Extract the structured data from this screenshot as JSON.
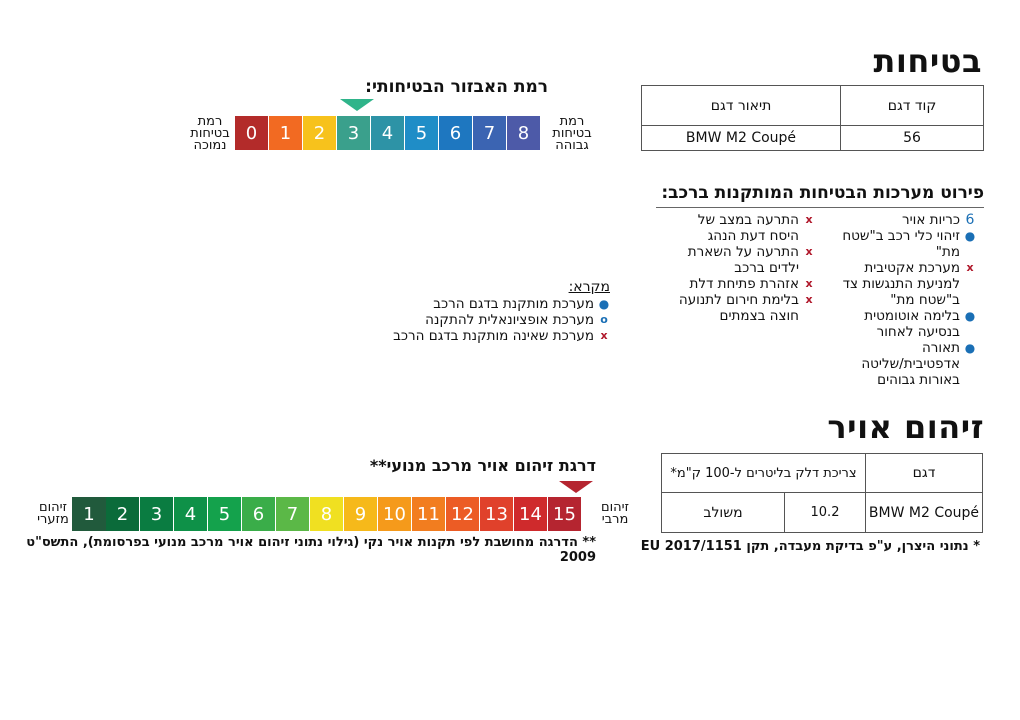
{
  "safety": {
    "title": "בטיחות",
    "table": {
      "headers": [
        "קוד דגם",
        "תיאור דגם"
      ],
      "row": [
        "56",
        "BMW M2 Coupé"
      ]
    },
    "level": {
      "title": "רמת האבזור הבטיחותי:",
      "high_label": [
        "רמת",
        "בטיחות",
        "גבוהה"
      ],
      "low_label": [
        "רמת",
        "בטיחות",
        "נמוכה"
      ],
      "values": [
        "8",
        "7",
        "6",
        "5",
        "4",
        "3",
        "2",
        "1",
        "0"
      ],
      "colors": [
        "#4d5aa8",
        "#3b64b2",
        "#1e77c0",
        "#1f8dc7",
        "#2d93a6",
        "#3aa08c",
        "#f7c21c",
        "#f26a22",
        "#b32b2a"
      ],
      "selected": "3",
      "indicator_color": "#2fb48a"
    },
    "systems": {
      "title": "פירוט מערכות הבטיחות המותקנות ברכב:",
      "col_right": [
        {
          "mark": "6",
          "type": "num",
          "text": "כריות אויר"
        },
        {
          "mark": "●",
          "type": "dot",
          "text": "זיהוי כלי רכב ב\"שטח מת\""
        },
        {
          "mark": "x",
          "type": "x",
          "text": "מערכת אקטיבית למניעת התנגשות צד ב\"שטח מת\""
        },
        {
          "mark": "●",
          "type": "dot",
          "text": "בלימה אוטומטית בנסיעה לאחור"
        },
        {
          "mark": "●",
          "type": "dot",
          "text": "תאורה אדפטיבית/שליטה באורות גבוהים"
        }
      ],
      "col_left": [
        {
          "mark": "x",
          "type": "x",
          "text": "התרעה במצב של היסח דעת הנהג"
        },
        {
          "mark": "x",
          "type": "x",
          "text": "התרעה על השארת ילדים ברכב"
        },
        {
          "mark": "x",
          "type": "x",
          "text": "אזהרת פתיחת דלת"
        },
        {
          "mark": "x",
          "type": "x",
          "text": "בלימת חירום לתנועה חוצה בצמתים"
        }
      ]
    },
    "legend": {
      "title": "מקרא:",
      "items": [
        {
          "mark": "●",
          "type": "dot",
          "text": "מערכת מותקנת בדגם הרכב"
        },
        {
          "mark": "o",
          "type": "ring",
          "text": "מערכת אופציונאלית להתקנה"
        },
        {
          "mark": "x",
          "type": "x",
          "text": "מערכת שאינה מותקנת בדגם הרכב"
        }
      ]
    }
  },
  "pollution": {
    "title": "זיהום אויר",
    "table": {
      "headers": [
        "דגם",
        "צריכת דלק בליטרים ל-100 ק\"מ*"
      ],
      "row": [
        "BMW M2 Coupé",
        "10.2",
        "משולב"
      ]
    },
    "level": {
      "title": "דרגת זיהום אויר מרכב מנועי**",
      "high_label": [
        "זיהום",
        "מרבי"
      ],
      "low_label": [
        "זיהום",
        "מזערי"
      ],
      "values": [
        "15",
        "14",
        "13",
        "12",
        "11",
        "10",
        "9",
        "8",
        "7",
        "6",
        "5",
        "4",
        "3",
        "2",
        "1"
      ],
      "colors": [
        "#b52530",
        "#cf2a2c",
        "#e0412b",
        "#ec5c25",
        "#f27d1f",
        "#f59a1b",
        "#f6b91a",
        "#f0e021",
        "#5bb847",
        "#3aad49",
        "#14a24c",
        "#0e9148",
        "#0a7c41",
        "#0b6b3a",
        "#215a3c"
      ],
      "selected": "15",
      "indicator_color": "#b52530"
    },
    "footnote1": "* נתוני היצרן, ע\"פ בדיקת מעבדה, תקן EU 2017/1151",
    "footnote2": "** הדרגה מחושבת לפי תקנות אויר נקי (גילוי נתוני זיהום אויר מרכב מנועי בפרסומת), התשס\"ט 2009"
  }
}
